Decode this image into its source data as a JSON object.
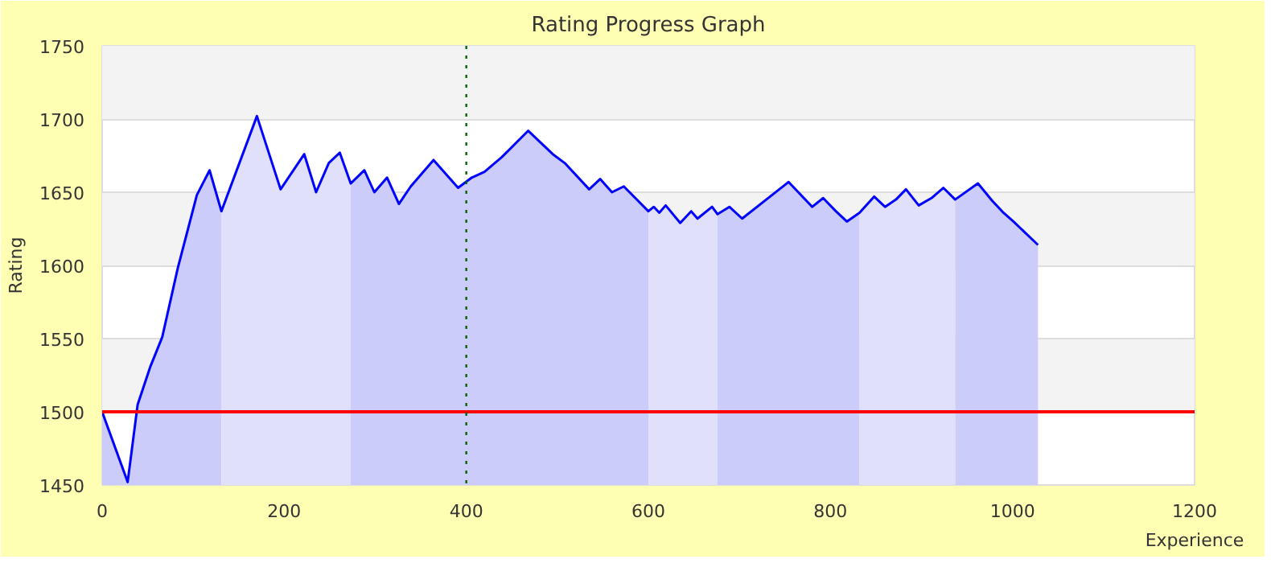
{
  "chart_data": {
    "type": "line",
    "title": "Rating Progress Graph",
    "xlabel": "Experience",
    "ylabel": "Rating",
    "xlim": [
      0,
      1200
    ],
    "xticks": [
      0,
      200,
      400,
      600,
      800,
      1000,
      1200
    ],
    "ylim": [
      1450,
      1750
    ],
    "yticks": [
      1450,
      1500,
      1550,
      1600,
      1650,
      1700,
      1750
    ],
    "grid": "y",
    "marker": "none",
    "line_style": "solid",
    "ref_lines": [
      {
        "axis": "y",
        "value": 1500,
        "color": "#ff0000",
        "line_style": "solid"
      },
      {
        "axis": "x",
        "value": 400,
        "color": "#006600",
        "line_style": "dotted"
      }
    ],
    "series": [
      {
        "type": "area",
        "color": "#ccccfa",
        "x": [
          0,
          28,
          39,
          53,
          66,
          83,
          104,
          118,
          131
        ],
        "values": [
          1500,
          1452,
          1505,
          1531,
          1551,
          1598,
          1648,
          1665,
          1637
        ]
      },
      {
        "type": "area",
        "color": "#e0e0fb",
        "x": [
          131,
          170,
          196,
          222,
          235,
          249,
          261,
          273
        ],
        "values": [
          1637,
          1702,
          1652,
          1676,
          1650,
          1670,
          1677,
          1656
        ]
      },
      {
        "type": "area",
        "color": "#ccccfa",
        "x": [
          273,
          288,
          299,
          313,
          326,
          339,
          364,
          391,
          406,
          420,
          439,
          468,
          495,
          508,
          535,
          547,
          560,
          573,
          600
        ],
        "values": [
          1656,
          1665,
          1650,
          1660,
          1642,
          1654,
          1672,
          1653,
          1660,
          1664,
          1674,
          1692,
          1676,
          1670,
          1652,
          1659,
          1650,
          1654,
          1637
        ]
      },
      {
        "type": "area",
        "color": "#e0e0fb",
        "x": [
          600,
          606,
          612,
          619,
          635,
          647,
          654,
          670,
          676
        ],
        "values": [
          1637,
          1640,
          1636,
          1641,
          1629,
          1637,
          1632,
          1640,
          1635
        ]
      },
      {
        "type": "area",
        "color": "#ccccfa",
        "x": [
          676,
          689,
          703,
          750,
          754,
          780,
          792,
          806,
          818,
          832
        ],
        "values": [
          1635,
          1640,
          1632,
          1655,
          1657,
          1640,
          1646,
          1637,
          1630,
          1636
        ]
      },
      {
        "type": "area",
        "color": "#e0e0fb",
        "x": [
          832,
          848,
          860,
          872,
          883,
          897,
          911,
          924,
          937
        ],
        "values": [
          1636,
          1647,
          1640,
          1645,
          1652,
          1641,
          1646,
          1653,
          1645
        ]
      },
      {
        "type": "area",
        "color": "#ccccfa",
        "x": [
          937,
          962,
          978,
          990,
          1001,
          1028
        ],
        "values": [
          1645,
          1656,
          1644,
          1636,
          1630,
          1614
        ]
      },
      {
        "color": "#0000ff",
        "x": [
          0,
          28,
          39,
          53,
          66,
          83,
          104,
          118,
          131,
          170,
          196,
          222,
          235,
          249,
          261,
          273,
          288,
          299,
          313,
          326,
          339,
          364,
          391,
          406,
          420,
          439,
          468,
          495,
          508,
          535,
          547,
          560,
          573,
          600,
          606,
          612,
          619,
          635,
          647,
          654,
          670,
          676,
          689,
          703,
          750,
          754,
          780,
          792,
          806,
          818,
          832,
          848,
          860,
          872,
          883,
          897,
          911,
          924,
          937,
          962,
          978,
          990,
          1001,
          1028
        ],
        "values": [
          1500,
          1452,
          1505,
          1531,
          1551,
          1598,
          1648,
          1665,
          1637,
          1702,
          1652,
          1676,
          1650,
          1670,
          1677,
          1656,
          1665,
          1650,
          1660,
          1642,
          1654,
          1672,
          1653,
          1660,
          1664,
          1674,
          1692,
          1676,
          1670,
          1652,
          1659,
          1650,
          1654,
          1637,
          1640,
          1636,
          1641,
          1629,
          1637,
          1632,
          1640,
          1635,
          1640,
          1632,
          1655,
          1657,
          1640,
          1646,
          1637,
          1630,
          1636,
          1647,
          1640,
          1645,
          1652,
          1641,
          1646,
          1653,
          1645,
          1656,
          1644,
          1636,
          1630,
          1614
        ]
      }
    ]
  }
}
